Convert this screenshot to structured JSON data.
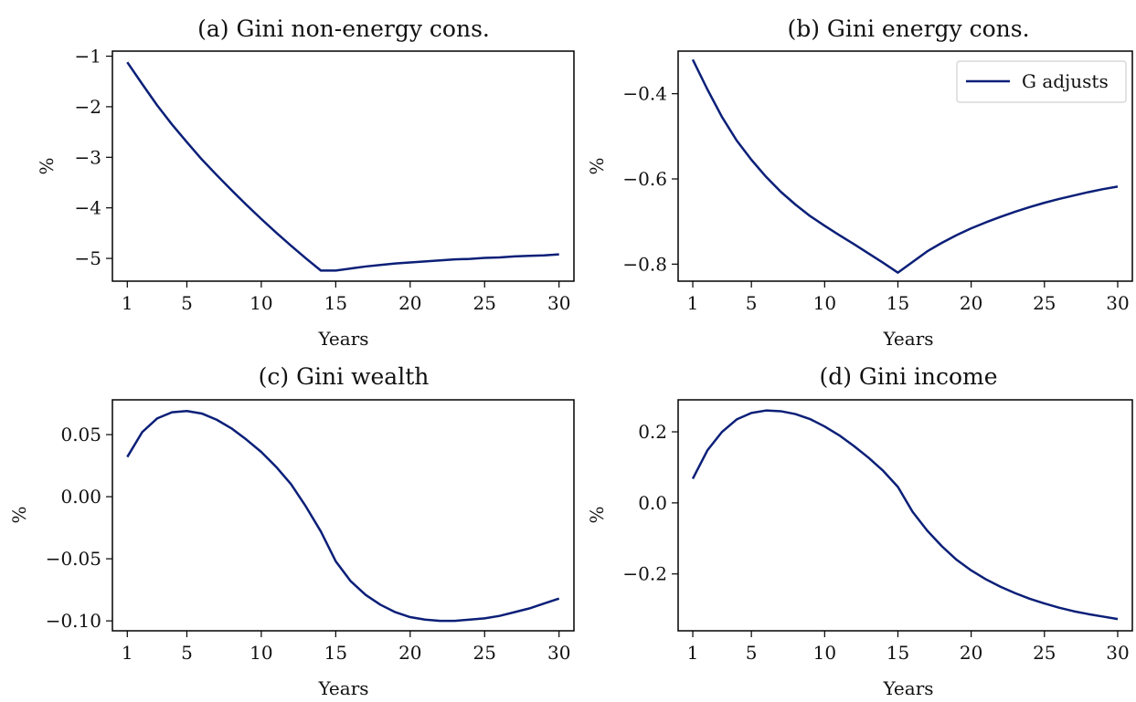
{
  "series_color": "#0b1f78",
  "chart_data": [
    {
      "type": "line",
      "title": "(a) Gini non-energy cons.",
      "xlabel": "Years",
      "ylabel": "%",
      "xlim": [
        0,
        31
      ],
      "ylim": [
        -5.45,
        -0.9
      ],
      "xticks": [
        1,
        5,
        10,
        15,
        20,
        25,
        30
      ],
      "yticks": [
        -1,
        -2,
        -3,
        -4,
        -5
      ],
      "ytick_labels": [
        "−1",
        "−2",
        "−3",
        "−4",
        "−5"
      ],
      "grid": false,
      "legend": null,
      "series": [
        {
          "name": "",
          "x": [
            1,
            2,
            3,
            4,
            5,
            6,
            7,
            8,
            9,
            10,
            11,
            12,
            13,
            14,
            15,
            16,
            17,
            18,
            19,
            20,
            21,
            22,
            23,
            24,
            25,
            26,
            27,
            28,
            29,
            30
          ],
          "values": [
            -1.12,
            -1.55,
            -1.97,
            -2.35,
            -2.7,
            -3.04,
            -3.35,
            -3.65,
            -3.94,
            -4.22,
            -4.49,
            -4.75,
            -5.0,
            -5.24,
            -5.24,
            -5.2,
            -5.16,
            -5.13,
            -5.1,
            -5.08,
            -5.06,
            -5.04,
            -5.02,
            -5.01,
            -4.99,
            -4.98,
            -4.96,
            -4.95,
            -4.94,
            -4.92
          ]
        }
      ]
    },
    {
      "type": "line",
      "title": "(b) Gini energy cons.",
      "xlabel": "Years",
      "ylabel": "%",
      "xlim": [
        0,
        31
      ],
      "ylim": [
        -0.84,
        -0.3
      ],
      "xticks": [
        1,
        5,
        10,
        15,
        20,
        25,
        30
      ],
      "yticks": [
        -0.4,
        -0.6,
        -0.8
      ],
      "ytick_labels": [
        "−0.4",
        "−0.6",
        "−0.8"
      ],
      "grid": false,
      "legend": "top-right",
      "series": [
        {
          "name": "G adjusts",
          "x": [
            1,
            2,
            3,
            4,
            5,
            6,
            7,
            8,
            9,
            10,
            11,
            12,
            13,
            14,
            15,
            16,
            17,
            18,
            19,
            20,
            21,
            22,
            23,
            24,
            25,
            26,
            27,
            28,
            29,
            30
          ],
          "values": [
            -0.32,
            -0.39,
            -0.455,
            -0.51,
            -0.555,
            -0.595,
            -0.63,
            -0.66,
            -0.687,
            -0.71,
            -0.732,
            -0.753,
            -0.775,
            -0.797,
            -0.82,
            -0.795,
            -0.77,
            -0.75,
            -0.732,
            -0.716,
            -0.702,
            -0.689,
            -0.677,
            -0.666,
            -0.656,
            -0.647,
            -0.639,
            -0.631,
            -0.624,
            -0.618
          ]
        }
      ]
    },
    {
      "type": "line",
      "title": "(c) Gini wealth",
      "xlabel": "Years",
      "ylabel": "%",
      "xlim": [
        0,
        31
      ],
      "ylim": [
        -0.108,
        0.078
      ],
      "xticks": [
        1,
        5,
        10,
        15,
        20,
        25,
        30
      ],
      "yticks": [
        0.05,
        0.0,
        -0.05,
        -0.1
      ],
      "ytick_labels": [
        "0.05",
        "0.00",
        "−0.05",
        "−0.10"
      ],
      "grid": false,
      "legend": null,
      "series": [
        {
          "name": "",
          "x": [
            1,
            2,
            3,
            4,
            5,
            6,
            7,
            8,
            9,
            10,
            11,
            12,
            13,
            14,
            15,
            16,
            17,
            18,
            19,
            20,
            21,
            22,
            23,
            24,
            25,
            26,
            27,
            28,
            29,
            30
          ],
          "values": [
            0.032,
            0.052,
            0.063,
            0.068,
            0.069,
            0.067,
            0.062,
            0.055,
            0.046,
            0.036,
            0.024,
            0.01,
            -0.008,
            -0.028,
            -0.052,
            -0.068,
            -0.079,
            -0.087,
            -0.093,
            -0.097,
            -0.099,
            -0.1,
            -0.1,
            -0.099,
            -0.098,
            -0.096,
            -0.093,
            -0.09,
            -0.086,
            -0.082
          ]
        }
      ]
    },
    {
      "type": "line",
      "title": "(d) Gini income",
      "xlabel": "Years",
      "ylabel": "%",
      "xlim": [
        0,
        31
      ],
      "ylim": [
        -0.36,
        0.29
      ],
      "xticks": [
        1,
        5,
        10,
        15,
        20,
        25,
        30
      ],
      "yticks": [
        0.2,
        0.0,
        -0.2
      ],
      "ytick_labels": [
        "0.2",
        "0.0",
        "−0.2"
      ],
      "grid": false,
      "legend": null,
      "series": [
        {
          "name": "",
          "x": [
            1,
            2,
            3,
            4,
            5,
            6,
            7,
            8,
            9,
            10,
            11,
            12,
            13,
            14,
            15,
            16,
            17,
            18,
            19,
            20,
            21,
            22,
            23,
            24,
            25,
            26,
            27,
            28,
            29,
            30
          ],
          "values": [
            0.068,
            0.148,
            0.2,
            0.235,
            0.253,
            0.26,
            0.258,
            0.25,
            0.236,
            0.215,
            0.19,
            0.16,
            0.127,
            0.09,
            0.045,
            -0.025,
            -0.078,
            -0.122,
            -0.16,
            -0.19,
            -0.215,
            -0.236,
            -0.254,
            -0.27,
            -0.283,
            -0.295,
            -0.305,
            -0.313,
            -0.32,
            -0.327
          ]
        }
      ]
    }
  ]
}
